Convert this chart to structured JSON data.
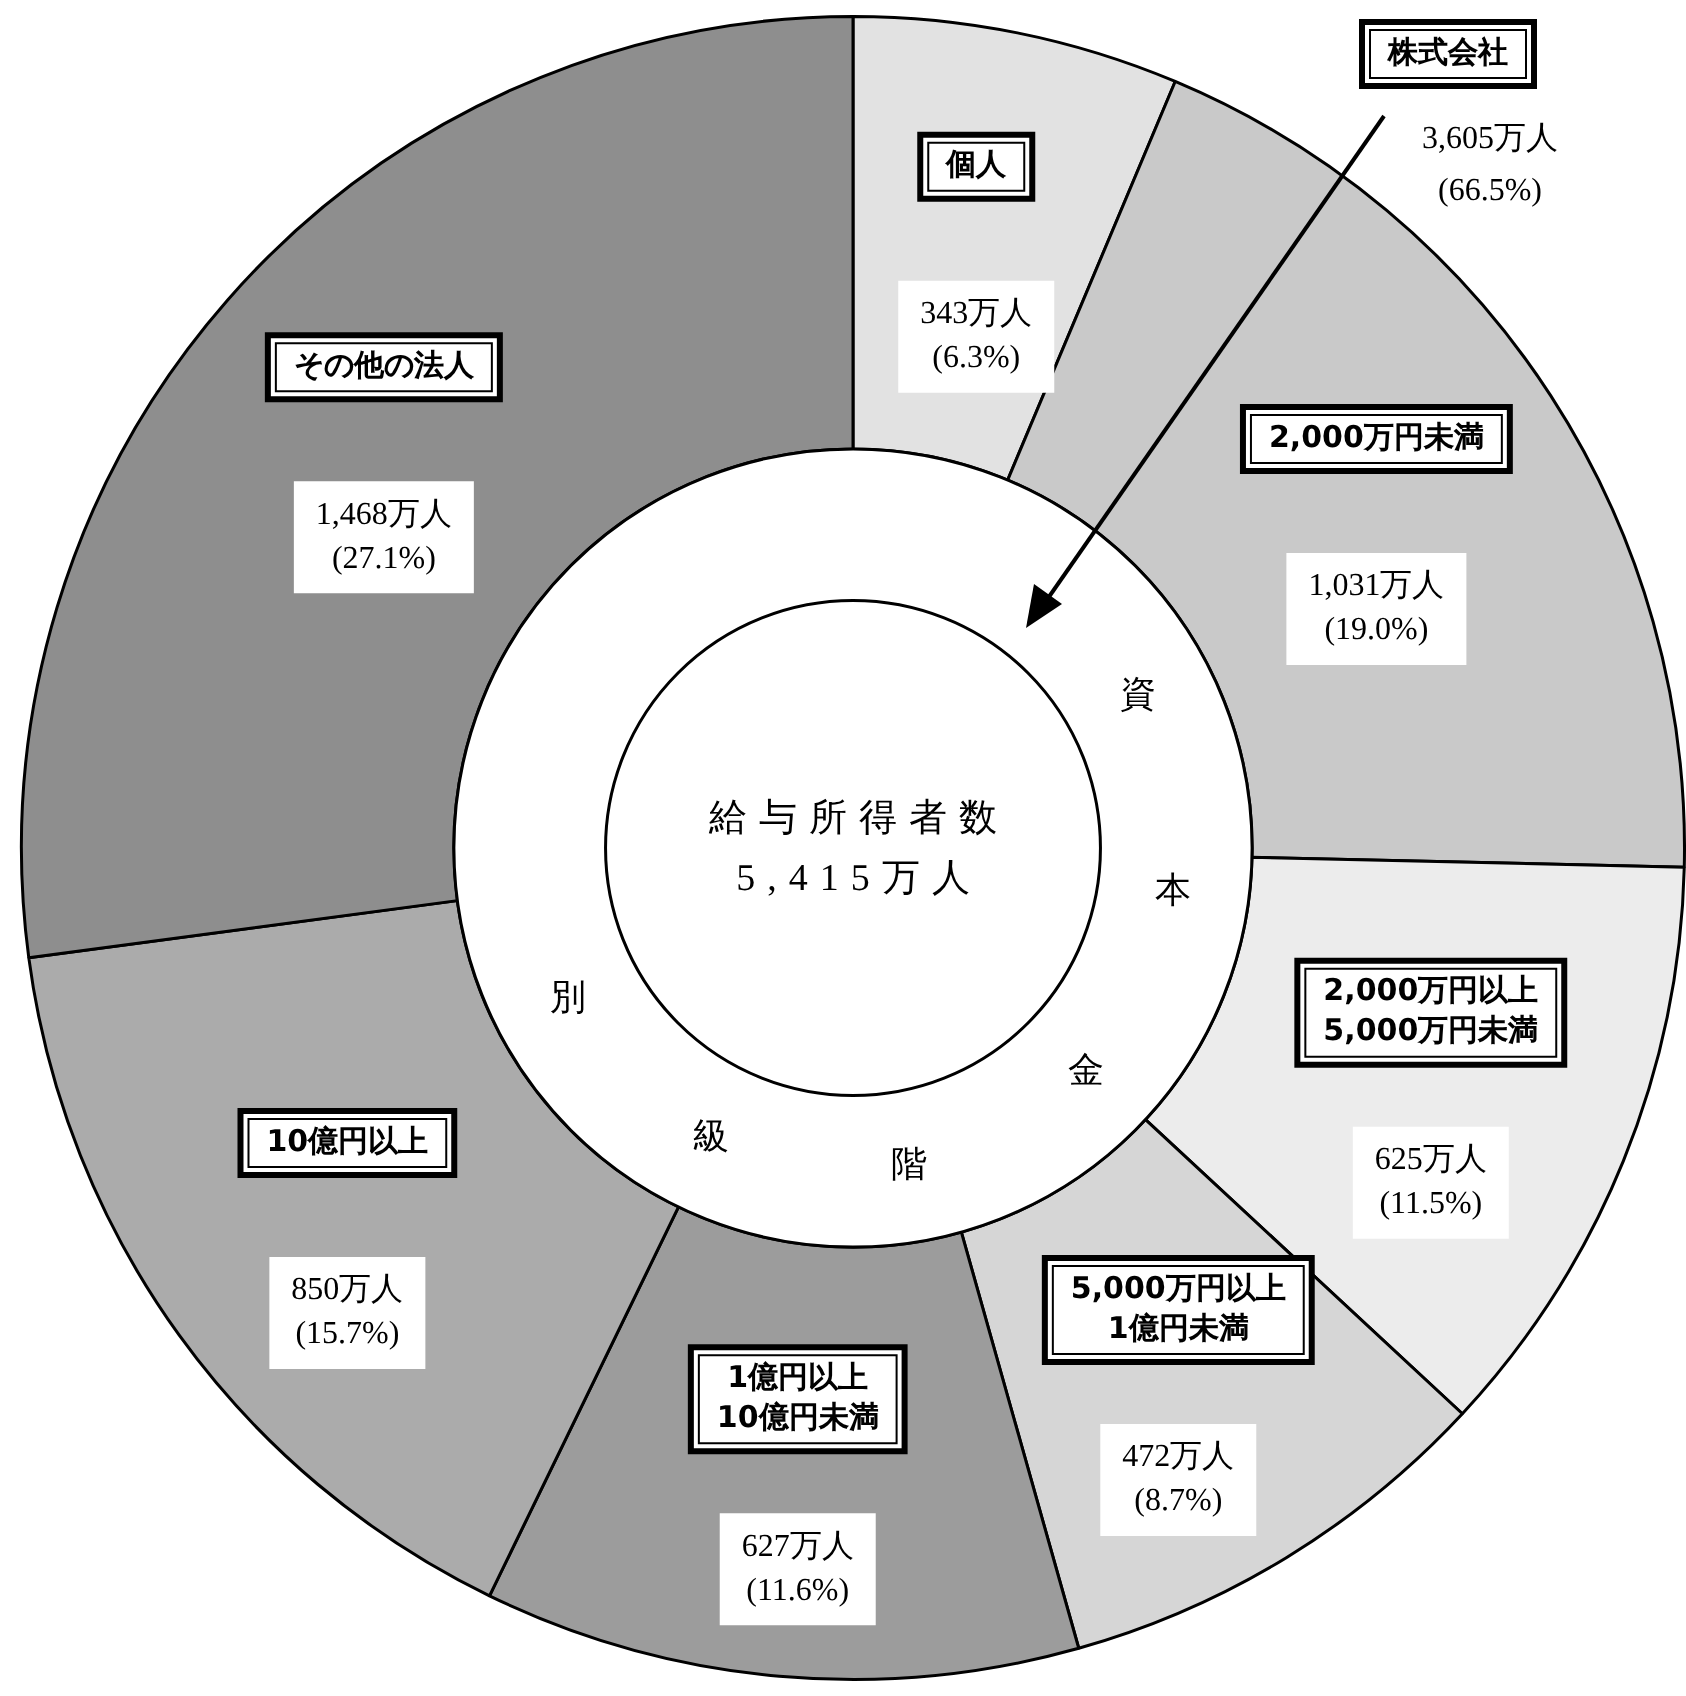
{
  "chart_data": {
    "type": "donut",
    "categories": [
      "個人",
      "2,000万円未満",
      "2,000万円以上 5,000万円未満",
      "5,000万円以上 1億円未満",
      "1億円以上 10億円未満",
      "10億円以上",
      "その他の法人"
    ],
    "values": [
      343,
      1031,
      625,
      472,
      627,
      850,
      1468
    ],
    "colors": [
      "#e2e2e2",
      "#c9c9c9",
      "#ececec",
      "#d6d6d6",
      "#9c9c9c",
      "#ababab",
      "#8e8e8e"
    ],
    "value_labels": [
      "343万人 (6.3%)",
      "1,031万人 (19.0%)",
      "625万人 (11.5%)",
      "472万人 (8.7%)",
      "627万人 (11.6%)",
      "850万人 (15.7%)",
      "1,468万人 (27.1%)"
    ],
    "annotations": [
      "株式会社",
      "3,605万人 (66.5%)",
      "給与所得者数",
      "5,415万人",
      "資",
      "本",
      "金",
      "階",
      "級",
      "別"
    ],
    "legend": false
  }
}
